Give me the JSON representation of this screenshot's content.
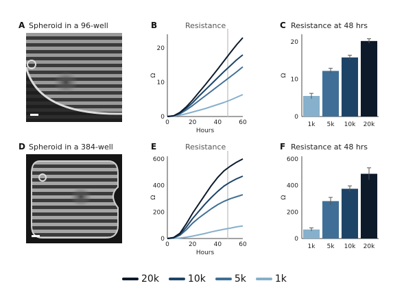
{
  "panels": {
    "A": {
      "letter": "A",
      "title": "Spheroid in a 96-well"
    },
    "D": {
      "letter": "D",
      "title": "Spheroid in a 384-well"
    },
    "B": {
      "letter": "B"
    },
    "C": {
      "letter": "C"
    },
    "E": {
      "letter": "E"
    },
    "F": {
      "letter": "F"
    }
  },
  "colors": {
    "20k": "#0c1a2a",
    "10k": "#1d4466",
    "5k": "#3f6f96",
    "1k": "#86b0cc"
  },
  "legend": [
    {
      "label": "20k",
      "color": "#0c1a2a"
    },
    {
      "label": "10k",
      "color": "#1d4466"
    },
    {
      "label": "5k",
      "color": "#3f6f96"
    },
    {
      "label": "1k",
      "color": "#86b0cc"
    }
  ],
  "chart_data": [
    {
      "id": "B",
      "type": "line",
      "title": "Resistance",
      "xlabel": "Hours",
      "ylabel": "Ω",
      "xlim": [
        0,
        60
      ],
      "ylim": [
        0,
        24
      ],
      "xticks": [
        0,
        20,
        40,
        60
      ],
      "yticks": [
        0,
        10,
        20
      ],
      "vline": 48,
      "series": [
        {
          "name": "20k",
          "x": [
            0,
            5,
            10,
            15,
            20,
            25,
            30,
            35,
            40,
            45,
            50,
            55,
            60
          ],
          "y": [
            0,
            0.2,
            1.2,
            2.8,
            4.8,
            7,
            9.2,
            11.5,
            13.8,
            16.2,
            18.6,
            20.9,
            23
          ]
        },
        {
          "name": "10k",
          "x": [
            0,
            5,
            10,
            15,
            20,
            25,
            30,
            35,
            40,
            45,
            50,
            55,
            60
          ],
          "y": [
            0,
            0.2,
            1,
            2.4,
            4,
            5.9,
            7.7,
            9.5,
            11.3,
            13.1,
            14.8,
            16.5,
            18
          ]
        },
        {
          "name": "5k",
          "x": [
            0,
            5,
            10,
            15,
            20,
            25,
            30,
            35,
            40,
            45,
            50,
            55,
            60
          ],
          "y": [
            0,
            0.2,
            0.8,
            1.9,
            3.2,
            4.6,
            6,
            7.4,
            8.8,
            10.2,
            11.6,
            13,
            14.5
          ]
        },
        {
          "name": "1k",
          "x": [
            0,
            5,
            10,
            15,
            20,
            25,
            30,
            35,
            40,
            45,
            50,
            55,
            60
          ],
          "y": [
            0,
            0.1,
            0.4,
            0.8,
            1.3,
            1.8,
            2.3,
            2.9,
            3.5,
            4.1,
            4.8,
            5.6,
            6.4
          ]
        }
      ]
    },
    {
      "id": "C",
      "type": "bar",
      "title": "Resistance at 48 hrs",
      "ylabel": "Ω",
      "ylim": [
        0,
        22
      ],
      "yticks": [
        0,
        10,
        20
      ],
      "categories": [
        "1k",
        "5k",
        "10k",
        "20k"
      ],
      "values": [
        5.5,
        12.2,
        15.8,
        20.2
      ],
      "errors": [
        0.7,
        0.7,
        0.6,
        0.6
      ]
    },
    {
      "id": "E",
      "type": "line",
      "title": "Resistance",
      "xlabel": "Hours",
      "ylabel": "Ω",
      "xlim": [
        0,
        60
      ],
      "ylim": [
        0,
        620
      ],
      "xticks": [
        0,
        20,
        40,
        60
      ],
      "yticks": [
        0,
        200,
        400,
        600
      ],
      "vline": 48,
      "series": [
        {
          "name": "20k",
          "x": [
            0,
            5,
            10,
            15,
            20,
            25,
            30,
            35,
            40,
            45,
            50,
            55,
            60
          ],
          "y": [
            0,
            8,
            40,
            110,
            190,
            260,
            330,
            400,
            460,
            510,
            545,
            575,
            600
          ]
        },
        {
          "name": "10k",
          "x": [
            0,
            5,
            10,
            15,
            20,
            25,
            30,
            35,
            40,
            45,
            50,
            55,
            60
          ],
          "y": [
            0,
            6,
            30,
            85,
            150,
            205,
            260,
            310,
            355,
            395,
            425,
            450,
            470
          ]
        },
        {
          "name": "5k",
          "x": [
            0,
            5,
            10,
            15,
            20,
            25,
            30,
            35,
            40,
            45,
            50,
            55,
            60
          ],
          "y": [
            0,
            5,
            25,
            65,
            115,
            155,
            190,
            225,
            255,
            280,
            300,
            315,
            330
          ]
        },
        {
          "name": "1k",
          "x": [
            0,
            5,
            10,
            15,
            20,
            25,
            30,
            35,
            40,
            45,
            50,
            55,
            60
          ],
          "y": [
            0,
            1,
            4,
            10,
            18,
            28,
            38,
            50,
            60,
            70,
            78,
            88,
            95
          ]
        }
      ]
    },
    {
      "id": "F",
      "type": "bar",
      "title": "Resistance at 48 hrs",
      "ylabel": "Ω",
      "ylim": [
        0,
        620
      ],
      "yticks": [
        0,
        200,
        400,
        600
      ],
      "categories": [
        "1k",
        "5k",
        "10k",
        "20k"
      ],
      "values": [
        68,
        282,
        375,
        488
      ],
      "errors": [
        12,
        28,
        22,
        45
      ]
    }
  ]
}
